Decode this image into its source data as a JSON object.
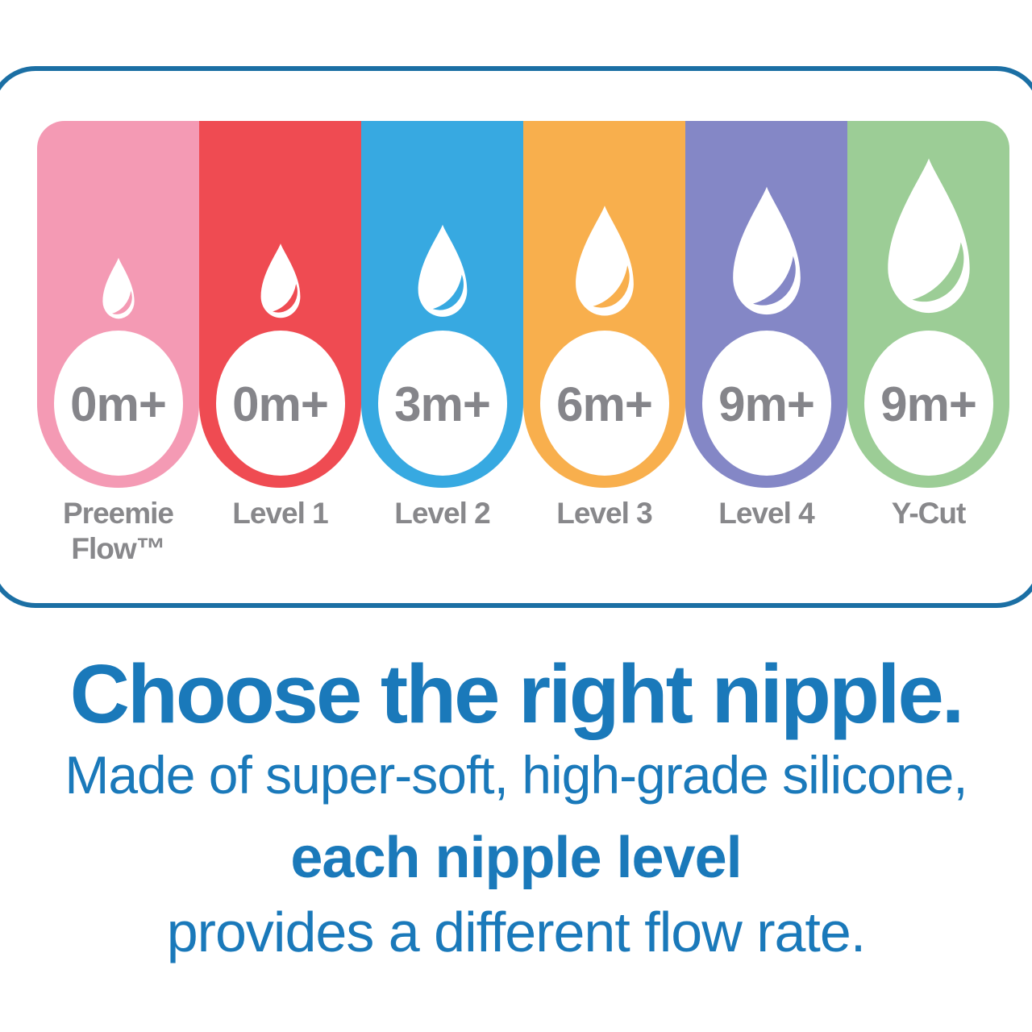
{
  "palette": {
    "background": "#ffffff",
    "card_border_blue": "#1b6fa4",
    "caption_blue": "#1a79ba",
    "label_gray": "#88888b"
  },
  "flow_guide": {
    "columns": [
      {
        "id": "preemie-flow",
        "color": "#f49ab4",
        "age_badge": "0m+",
        "label_top": "Preemie",
        "label_bottom": "Flow™",
        "drop_width": 53,
        "drop_height": 82
      },
      {
        "id": "level-1",
        "color": "#ef4b52",
        "age_badge": "0m+",
        "label_top": "Level 1",
        "label_bottom": "",
        "drop_width": 66,
        "drop_height": 100
      },
      {
        "id": "level-2",
        "color": "#37a9e1",
        "age_badge": "3m+",
        "label_top": "Level 2",
        "label_bottom": "",
        "drop_width": 82,
        "drop_height": 124
      },
      {
        "id": "level-3",
        "color": "#f8af4d",
        "age_badge": "6m+",
        "label_top": "Level 3",
        "label_bottom": "",
        "drop_width": 97,
        "drop_height": 148
      },
      {
        "id": "level-4",
        "color": "#8487c6",
        "age_badge": "9m+",
        "label_top": "Level 4",
        "label_bottom": "",
        "drop_width": 113,
        "drop_height": 172
      },
      {
        "id": "y-cut",
        "color": "#9ccd96",
        "age_badge": "9m+",
        "label_top": "Y-Cut",
        "label_bottom": "",
        "drop_width": 137,
        "drop_height": 208
      }
    ]
  },
  "caption": {
    "title": "Choose the right nipple.",
    "line1": "Made of super-soft, high-grade silicone,",
    "line2_bold": "each nipple level",
    "line3": "provides a different flow rate."
  }
}
